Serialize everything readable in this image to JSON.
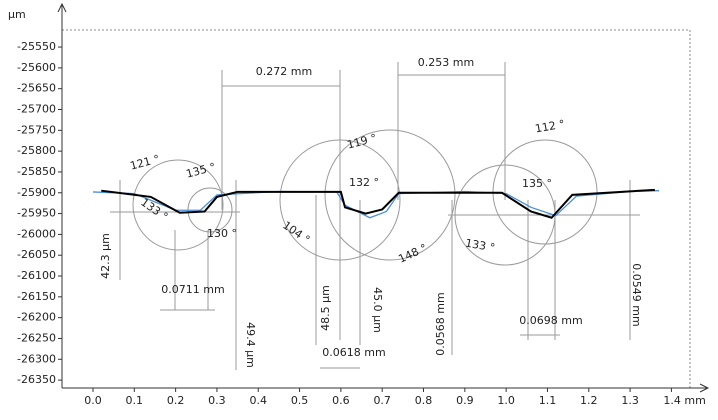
{
  "chart_data": {
    "type": "line",
    "y_label": "μm",
    "xlim": [
      -0.075,
      1.445
    ],
    "ylim": [
      -26369,
      -25509
    ],
    "xticks": [
      {
        "value": 0,
        "label": "0.0"
      },
      0.1,
      0.2,
      0.3,
      0.4,
      0.5,
      0.6,
      0.7,
      0.8,
      0.9,
      {
        "value": 1,
        "label": "1.0"
      },
      1.1,
      1.2,
      1.3,
      {
        "value": 1.4,
        "label": "1.4 mm"
      }
    ],
    "yticks": [
      -25550,
      -25600,
      -25650,
      -25700,
      -25750,
      -25800,
      -25850,
      -25900,
      -25950,
      -26000,
      -26050,
      -26100,
      -26150,
      -26200,
      -26250,
      -26300,
      -26350
    ],
    "grid": false,
    "series": [
      {
        "color": "#4a90d9",
        "x": [
          0.0,
          0.1,
          0.2,
          0.26,
          0.3,
          0.45,
          0.59,
          0.61,
          0.67,
          0.71,
          0.74,
          0.9,
          1.0,
          1.06,
          1.12,
          1.17,
          1.3,
          1.37
        ],
        "values": [
          -25898,
          -25902,
          -25942,
          -25942,
          -25905,
          -25897,
          -25898,
          -25930,
          -25960,
          -25945,
          -25902,
          -25897,
          -25902,
          -25935,
          -25955,
          -25908,
          -25897,
          -25895
        ]
      },
      {
        "color": "#000000",
        "x": [
          0.02,
          0.14,
          0.21,
          0.27,
          0.3,
          0.35,
          0.6,
          0.61,
          0.66,
          0.7,
          0.74,
          0.99,
          1.06,
          1.11,
          1.16,
          1.36
        ],
        "values": [
          -25895,
          -25910,
          -25948,
          -25945,
          -25910,
          -25898,
          -25898,
          -25935,
          -25950,
          -25940,
          -25900,
          -25900,
          -25945,
          -25960,
          -25905,
          -25893
        ]
      }
    ],
    "annotations": [
      "0.272 mm",
      "0.253 mm",
      "121 °",
      "135 °",
      "133 °",
      "130 °",
      "119 °",
      "132 °",
      "104 °",
      "148 °",
      "112 °",
      "135 °",
      "133 °",
      "42.3 μm",
      "0.0711 mm",
      "49.4 μm",
      "48.5 μm",
      "45.0 μm",
      "0.0568 mm",
      "0.0618 mm",
      "0.0698 mm",
      "0.0549 mm"
    ]
  }
}
